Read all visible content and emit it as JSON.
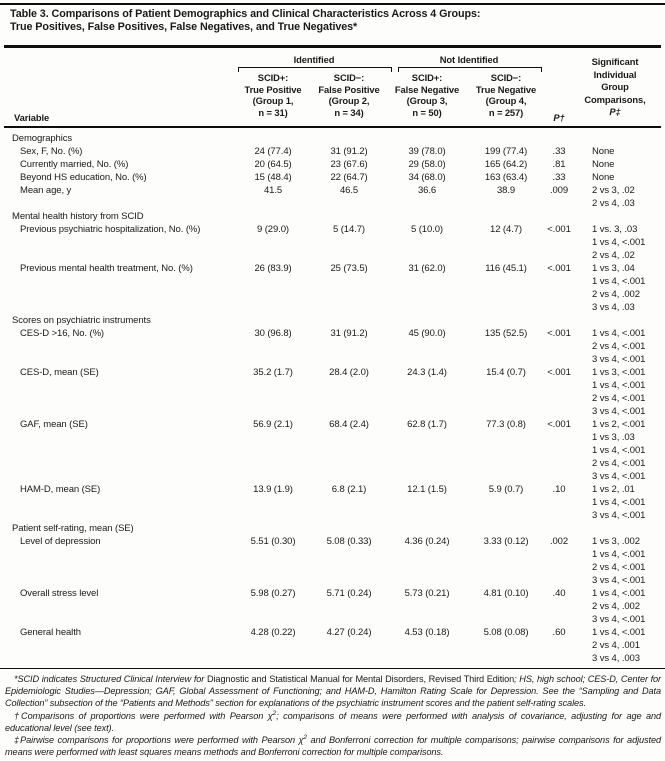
{
  "title": {
    "line1": "Table 3. Comparisons of Patient Demographics and Clinical Characteristics Across 4 Groups:",
    "line2": "True Positives, False Positives, False Negatives, and True Negatives*"
  },
  "header": {
    "variable": "Variable",
    "identified": "Identified",
    "not_identified": "Not Identified",
    "p": "P†",
    "comparisons_lines": [
      "Significant",
      "Individual",
      "Group",
      "Comparisons,",
      "P‡"
    ],
    "groups": [
      {
        "lines": [
          "SCID+:",
          "True Positive",
          "(Group 1,",
          "n = 31)"
        ]
      },
      {
        "lines": [
          "SCID−:",
          "False Positive",
          "(Group 2,",
          "n = 34)"
        ]
      },
      {
        "lines": [
          "SCID+:",
          "False Negative",
          "(Group 3,",
          "n = 50)"
        ]
      },
      {
        "lines": [
          "SCID−:",
          "True Negative",
          "(Group 4,",
          "n = 257)"
        ]
      }
    ]
  },
  "rows": [
    {
      "type": "section",
      "label": "Demographics"
    },
    {
      "type": "data",
      "label": "Sex, F, No. (%)",
      "values": [
        "24 (77.4)",
        "31 (91.2)",
        "39 (78.0)",
        "199 (77.4)"
      ],
      "p": ".33",
      "comparisons": [
        "None"
      ]
    },
    {
      "type": "data",
      "label": "Currently married, No. (%)",
      "values": [
        "20 (64.5)",
        "23 (67.6)",
        "29 (58.0)",
        "165 (64.2)"
      ],
      "p": ".81",
      "comparisons": [
        "None"
      ]
    },
    {
      "type": "data",
      "label": "Beyond HS education, No. (%)",
      "values": [
        "15 (48.4)",
        "22 (64.7)",
        "34 (68.0)",
        "163 (63.4)"
      ],
      "p": ".33",
      "comparisons": [
        "None"
      ]
    },
    {
      "type": "data",
      "label": "Mean age, y",
      "values": [
        "41.5",
        "46.5",
        "36.6",
        "38.9"
      ],
      "p": ".009",
      "comparisons": [
        "2 vs 3, .02",
        "2 vs 4, .03"
      ]
    },
    {
      "type": "section",
      "label": "Mental health history from SCID"
    },
    {
      "type": "data",
      "label": "Previous psychiatric hospitalization, No. (%)",
      "values": [
        "9 (29.0)",
        "5 (14.7)",
        "5 (10.0)",
        "12 (4.7)"
      ],
      "p": "<.001",
      "comparisons": [
        "1 vs. 3, .03",
        "1 vs 4, <.001",
        "2 vs 4, .02"
      ]
    },
    {
      "type": "data",
      "label": "Previous mental health treatment, No. (%)",
      "values": [
        "26 (83.9)",
        "25 (73.5)",
        "31 (62.0)",
        "116 (45.1)"
      ],
      "p": "<.001",
      "comparisons": [
        "1 vs 3, .04",
        "1 vs 4, <.001",
        "2 vs 4, .002",
        "3 vs 4, .03"
      ]
    },
    {
      "type": "section",
      "label": "Scores on psychiatric instruments"
    },
    {
      "type": "data",
      "label": "CES-D >16, No. (%)",
      "values": [
        "30 (96.8)",
        "31 (91.2)",
        "45 (90.0)",
        "135 (52.5)"
      ],
      "p": "<.001",
      "comparisons": [
        "1 vs 4, <.001",
        "2 vs 4, <.001",
        "3 vs 4, <.001"
      ]
    },
    {
      "type": "data",
      "label": "CES-D, mean (SE)",
      "values": [
        "35.2 (1.7)",
        "28.4 (2.0)",
        "24.3 (1.4)",
        "15.4 (0.7)"
      ],
      "p": "<.001",
      "comparisons": [
        "1 vs 3, <.001",
        "1 vs 4, <.001",
        "2 vs 4, <.001",
        "3 vs 4, <.001"
      ]
    },
    {
      "type": "data",
      "label": "GAF, mean (SE)",
      "values": [
        "56.9 (2.1)",
        "68.4 (2.4)",
        "62.8 (1.7)",
        "77.3 (0.8)"
      ],
      "p": "<.001",
      "comparisons": [
        "1 vs 2, <.001",
        "1 vs 3, .03",
        "1 vs 4, <.001",
        "2 vs 4, <.001",
        "3 vs 4, <.001"
      ]
    },
    {
      "type": "data",
      "label": "HAM-D, mean (SE)",
      "values": [
        "13.9 (1.9)",
        "6.8 (2.1)",
        "12.1 (1.5)",
        "5.9 (0.7)"
      ],
      "p": ".10",
      "comparisons": [
        "1 vs 2, .01",
        "1 vs 4, <.001",
        "3 vs 4, <.001"
      ]
    },
    {
      "type": "section",
      "label": "Patient self-rating, mean (SE)"
    },
    {
      "type": "data",
      "label": "Level of depression",
      "values": [
        "5.51 (0.30)",
        "5.08 (0.33)",
        "4.36 (0.24)",
        "3.33 (0.12)"
      ],
      "p": ".002",
      "comparisons": [
        "1 vs 3, .002",
        "1 vs 4, <.001",
        "2 vs 4, <.001",
        "3 vs 4, <.001"
      ]
    },
    {
      "type": "data",
      "label": "Overall stress level",
      "values": [
        "5.98 (0.27)",
        "5.71 (0.24)",
        "5.73 (0.21)",
        "4.81 (0.10)"
      ],
      "p": ".40",
      "comparisons": [
        "1 vs 4, <.001",
        "2 vs 4, .002",
        "3 vs 4, <.001"
      ]
    },
    {
      "type": "data",
      "label": "General health",
      "values": [
        "4.28 (0.22)",
        "4.27 (0.24)",
        "4.53 (0.18)",
        "5.08 (0.08)"
      ],
      "p": ".60",
      "comparisons": [
        "1 vs 4, <.001",
        "2 vs 4, .001",
        "3 vs 4, .003"
      ]
    }
  ],
  "footnotes": [
    {
      "segments": [
        {
          "t": "*SCID indicates Structured Clinical Interview for ",
          "s": "i"
        },
        {
          "t": "Diagnostic and Statistical Manual for Mental Disorders, Revised Third Edition",
          "s": "r"
        },
        {
          "t": "; HS, high school; CES-D, Center for Epidemiologic Studies—Depression; GAF, Global Assessment of Functioning; and HAM-D, Hamilton Rating Scale for Depression. See the “Sampling and Data Collection” subsection of the “Patients and Methods” section for explanations of the psychiatric instrument scores and the patient self-rating scales.",
          "s": "i"
        }
      ]
    },
    {
      "segments": [
        {
          "t": "†Comparisons of proportions were performed with Pearson χ",
          "s": "i"
        },
        {
          "t": "2",
          "s": "sup"
        },
        {
          "t": "; comparisons of means were performed with analysis of covariance, adjusting for age and educational level (see text).",
          "s": "i"
        }
      ]
    },
    {
      "segments": [
        {
          "t": "‡Pairwise comparisons for proportions were performed with Pearson χ",
          "s": "i"
        },
        {
          "t": "2",
          "s": "sup"
        },
        {
          "t": " and Bonferroni correction for multiple comparisons; pairwise comparisons for adjusted means were performed with least squares means methods and Bonferroni correction for multiple comparisons.",
          "s": "i"
        }
      ]
    }
  ]
}
